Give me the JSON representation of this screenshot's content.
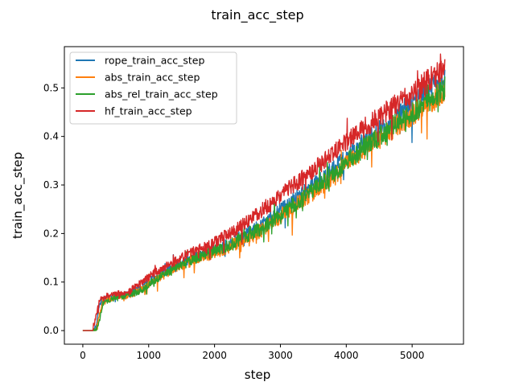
{
  "chart_data": {
    "type": "line",
    "title": "train_acc_step",
    "xlabel": "step",
    "ylabel": "train_acc_step",
    "xlim": [
      -280,
      5780
    ],
    "ylim": [
      -0.028,
      0.585
    ],
    "xticks": [
      0,
      1000,
      2000,
      3000,
      4000,
      5000
    ],
    "xtick_labels": [
      "0",
      "1000",
      "2000",
      "3000",
      "4000",
      "5000"
    ],
    "yticks": [
      0.0,
      0.1,
      0.2,
      0.3,
      0.4,
      0.5
    ],
    "ytick_labels": [
      "0.0",
      "0.1",
      "0.2",
      "0.3",
      "0.4",
      "0.5"
    ],
    "legend_position": "top-left",
    "series": [
      {
        "name": "rope_train_acc_step",
        "color": "#1f77b4",
        "x": [
          0,
          150,
          200,
          250,
          300,
          500,
          700,
          900,
          1100,
          1300,
          1500,
          1700,
          1900,
          2100,
          2300,
          2500,
          2700,
          2900,
          3100,
          3300,
          3500,
          3700,
          3900,
          4100,
          4300,
          4500,
          4700,
          4900,
          5100,
          5300,
          5500
        ],
        "y": [
          0.0,
          0.0,
          0.01,
          0.05,
          0.065,
          0.07,
          0.075,
          0.09,
          0.11,
          0.125,
          0.14,
          0.15,
          0.16,
          0.17,
          0.185,
          0.2,
          0.215,
          0.235,
          0.26,
          0.28,
          0.3,
          0.32,
          0.345,
          0.37,
          0.39,
          0.41,
          0.435,
          0.455,
          0.48,
          0.5,
          0.515
        ]
      },
      {
        "name": "abs_train_acc_step",
        "color": "#ff7f0e",
        "x": [
          0,
          150,
          200,
          250,
          300,
          500,
          700,
          900,
          1100,
          1300,
          1500,
          1700,
          1900,
          2100,
          2300,
          2500,
          2700,
          2900,
          3100,
          3300,
          3500,
          3700,
          3900,
          4100,
          4300,
          4500,
          4700,
          4900,
          5100,
          5300,
          5500
        ],
        "y": [
          0.0,
          0.0,
          0.0,
          0.03,
          0.06,
          0.07,
          0.072,
          0.085,
          0.105,
          0.12,
          0.135,
          0.145,
          0.155,
          0.165,
          0.178,
          0.19,
          0.205,
          0.225,
          0.245,
          0.265,
          0.285,
          0.305,
          0.33,
          0.355,
          0.375,
          0.395,
          0.415,
          0.435,
          0.455,
          0.475,
          0.495
        ]
      },
      {
        "name": "abs_rel_train_acc_step",
        "color": "#2ca02c",
        "x": [
          0,
          150,
          200,
          250,
          300,
          500,
          700,
          900,
          1100,
          1300,
          1500,
          1700,
          1900,
          2100,
          2300,
          2500,
          2700,
          2900,
          3100,
          3300,
          3500,
          3700,
          3900,
          4100,
          4300,
          4500,
          4700,
          4900,
          5100,
          5300,
          5500
        ],
        "y": [
          0.0,
          0.0,
          0.0,
          0.02,
          0.055,
          0.068,
          0.072,
          0.085,
          0.105,
          0.12,
          0.135,
          0.148,
          0.158,
          0.17,
          0.182,
          0.195,
          0.21,
          0.23,
          0.25,
          0.27,
          0.29,
          0.31,
          0.335,
          0.36,
          0.38,
          0.4,
          0.42,
          0.44,
          0.46,
          0.48,
          0.5
        ]
      },
      {
        "name": "hf_train_acc_step",
        "color": "#d62728",
        "x": [
          0,
          150,
          200,
          250,
          300,
          500,
          700,
          900,
          1100,
          1300,
          1500,
          1700,
          1900,
          2100,
          2300,
          2500,
          2700,
          2900,
          3100,
          3300,
          3500,
          3700,
          3900,
          4100,
          4300,
          4500,
          4700,
          4900,
          5100,
          5300,
          5500
        ],
        "y": [
          0.0,
          0.0,
          0.03,
          0.06,
          0.07,
          0.075,
          0.08,
          0.1,
          0.12,
          0.135,
          0.15,
          0.165,
          0.175,
          0.19,
          0.205,
          0.225,
          0.245,
          0.265,
          0.29,
          0.31,
          0.33,
          0.355,
          0.38,
          0.4,
          0.42,
          0.44,
          0.46,
          0.48,
          0.5,
          0.52,
          0.54
        ]
      }
    ]
  }
}
